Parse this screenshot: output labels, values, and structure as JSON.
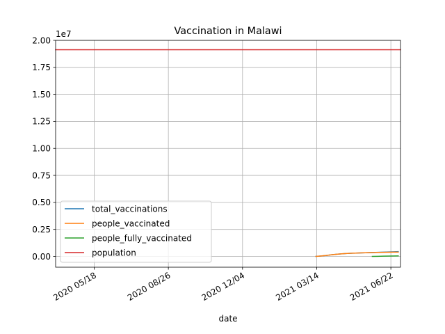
{
  "chart_data": {
    "type": "line",
    "title": "Vaccination in Malawi",
    "xlabel": "date",
    "ylabel": "",
    "y_offset_label": "1e7",
    "y_scale": 10000000,
    "ylim": [
      -1000000,
      20000000
    ],
    "xlim": [
      "2020-03-27",
      "2021-07-05"
    ],
    "y_ticks": [
      0,
      2500000,
      5000000,
      7500000,
      10000000,
      12500000,
      15000000,
      17500000,
      20000000
    ],
    "y_tick_labels": [
      "0.00",
      "0.25",
      "0.50",
      "0.75",
      "1.00",
      "1.25",
      "1.50",
      "1.75",
      "2.00"
    ],
    "x_ticks": [
      "2020-05-18",
      "2020-08-26",
      "2020-12-04",
      "2021-03-14",
      "2021-06-22"
    ],
    "x_tick_labels": [
      "2020 05/18",
      "2020 08/26",
      "2020 12/04",
      "2021 03/14",
      "2021 06/22"
    ],
    "grid": true,
    "legend_position": "lower-left",
    "series": [
      {
        "name": "total_vaccinations",
        "color": "#1f77b4",
        "points": [
          [
            "2021-03-13",
            0
          ],
          [
            "2021-03-20",
            40000
          ],
          [
            "2021-03-27",
            90000
          ],
          [
            "2021-04-03",
            150000
          ],
          [
            "2021-04-10",
            200000
          ],
          [
            "2021-04-17",
            240000
          ],
          [
            "2021-04-24",
            270000
          ],
          [
            "2021-05-01",
            295000
          ],
          [
            "2021-05-08",
            315000
          ],
          [
            "2021-05-15",
            330000
          ],
          [
            "2021-05-22",
            345000
          ],
          [
            "2021-05-29",
            360000
          ],
          [
            "2021-06-05",
            375000
          ],
          [
            "2021-06-12",
            390000
          ],
          [
            "2021-06-19",
            410000
          ],
          [
            "2021-06-26",
            425000
          ],
          [
            "2021-07-02",
            440000
          ]
        ]
      },
      {
        "name": "people_vaccinated",
        "color": "#ff7f0e",
        "points": [
          [
            "2021-03-13",
            0
          ],
          [
            "2021-03-20",
            40000
          ],
          [
            "2021-03-27",
            90000
          ],
          [
            "2021-04-03",
            150000
          ],
          [
            "2021-04-10",
            200000
          ],
          [
            "2021-04-17",
            240000
          ],
          [
            "2021-04-24",
            270000
          ],
          [
            "2021-05-01",
            295000
          ],
          [
            "2021-05-08",
            315000
          ],
          [
            "2021-05-15",
            330000
          ],
          [
            "2021-05-22",
            345000
          ],
          [
            "2021-05-29",
            355000
          ],
          [
            "2021-06-05",
            365000
          ],
          [
            "2021-06-12",
            375000
          ],
          [
            "2021-06-19",
            385000
          ],
          [
            "2021-06-26",
            390000
          ],
          [
            "2021-07-02",
            395000
          ]
        ]
      },
      {
        "name": "people_fully_vaccinated",
        "color": "#2ca02c",
        "points": [
          [
            "2021-05-28",
            0
          ],
          [
            "2021-06-05",
            10000
          ],
          [
            "2021-06-12",
            20000
          ],
          [
            "2021-06-19",
            30000
          ],
          [
            "2021-06-26",
            40000
          ],
          [
            "2021-07-02",
            45000
          ]
        ]
      },
      {
        "name": "population",
        "color": "#d62728",
        "points": [
          [
            "2020-03-27",
            19130000
          ],
          [
            "2021-07-05",
            19130000
          ]
        ]
      }
    ]
  }
}
